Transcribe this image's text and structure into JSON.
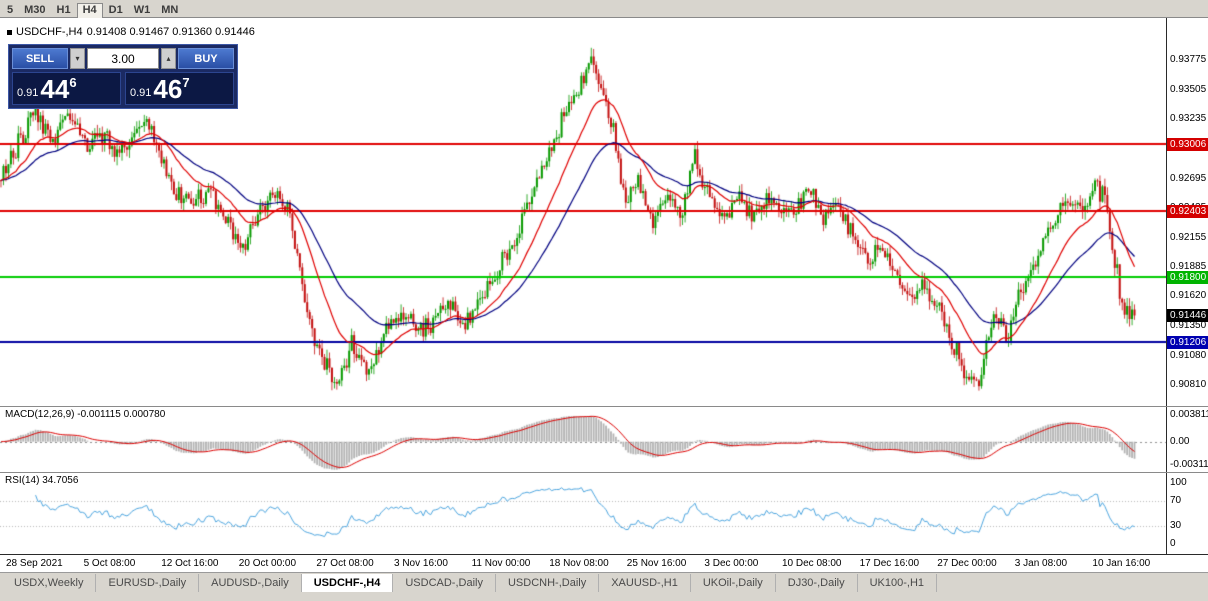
{
  "toolbar": {
    "timeframes": [
      "5",
      "M30",
      "H1",
      "H4",
      "D1",
      "W1",
      "MN"
    ],
    "active": "H4"
  },
  "symbol_header": {
    "name": "USDCHF-,H4",
    "ohlc": "0.91408 0.91467 0.91360 0.91446"
  },
  "trade_panel": {
    "sell_label": "SELL",
    "buy_label": "BUY",
    "lot_size": "3.00",
    "sell_price": {
      "prefix": "0.91",
      "big": "44",
      "sup": "6"
    },
    "buy_price": {
      "prefix": "0.91",
      "big": "46",
      "sup": "7"
    }
  },
  "price_axis": {
    "labels": [
      "0.93775",
      "0.93505",
      "0.93235",
      "0.92965",
      "0.92695",
      "0.92425",
      "0.92155",
      "0.91885",
      "0.91620",
      "0.91350",
      "0.91080",
      "0.90810"
    ],
    "tags": [
      {
        "text": "0.93006",
        "bg": "#d40000",
        "fg": "#ffffff"
      },
      {
        "text": "0.92403",
        "bg": "#d40000",
        "fg": "#ffffff"
      },
      {
        "text": "0.91800",
        "bg": "#00b400",
        "fg": "#ffffff"
      },
      {
        "text": "0.91446",
        "bg": "#000000",
        "fg": "#ffffff"
      },
      {
        "text": "0.91206",
        "bg": "#0000b0",
        "fg": "#ffffff"
      }
    ]
  },
  "tabs": {
    "items": [
      "USDX,Weekly",
      "EURUSD-,Daily",
      "AUDUSD-,Daily",
      "USDCHF-,H4",
      "USDCAD-,Daily",
      "USDCNH-,Daily",
      "XAUUSD-,H1",
      "UKOil-,Daily",
      "DJ30-,Daily",
      "UK100-,H1"
    ],
    "active": "USDCHF-,H4"
  },
  "chart_data": {
    "type": "candlestick",
    "symbol": "USDCHF-",
    "timeframe": "H4",
    "open": "0.91408",
    "high": "0.91467",
    "low": "0.91360",
    "close": "0.91446",
    "last_close": 0.91446,
    "y_range": [
      0.9062,
      0.9416
    ],
    "candle_count": 460,
    "up_color": "#089a00",
    "down_color": "#c41111",
    "ma_fast": {
      "period": 20,
      "color": "#e00000"
    },
    "ma_slow": {
      "period": 44,
      "color": "#000080"
    },
    "hlines": [
      {
        "value": 0.93006,
        "color": "#e00000",
        "width": 2
      },
      {
        "value": 0.92403,
        "color": "#e00000",
        "width": 2
      },
      {
        "value": 0.918,
        "color": "#00cc00",
        "width": 2
      },
      {
        "value": 0.91206,
        "color": "#0000a0",
        "width": 2
      }
    ],
    "anchors": [
      [
        0.0,
        0.9268
      ],
      [
        0.012,
        0.9295
      ],
      [
        0.03,
        0.9332
      ],
      [
        0.045,
        0.9305
      ],
      [
        0.06,
        0.9328
      ],
      [
        0.075,
        0.9296
      ],
      [
        0.09,
        0.9312
      ],
      [
        0.105,
        0.929
      ],
      [
        0.115,
        0.9302
      ],
      [
        0.128,
        0.9325
      ],
      [
        0.142,
        0.9282
      ],
      [
        0.155,
        0.9255
      ],
      [
        0.17,
        0.9248
      ],
      [
        0.185,
        0.9262
      ],
      [
        0.2,
        0.923
      ],
      [
        0.215,
        0.9205
      ],
      [
        0.228,
        0.924
      ],
      [
        0.242,
        0.9258
      ],
      [
        0.255,
        0.9235
      ],
      [
        0.268,
        0.916
      ],
      [
        0.282,
        0.9105
      ],
      [
        0.295,
        0.9082
      ],
      [
        0.31,
        0.912
      ],
      [
        0.325,
        0.9092
      ],
      [
        0.34,
        0.913
      ],
      [
        0.355,
        0.915
      ],
      [
        0.368,
        0.9128
      ],
      [
        0.382,
        0.9142
      ],
      [
        0.395,
        0.916
      ],
      [
        0.408,
        0.9135
      ],
      [
        0.422,
        0.9158
      ],
      [
        0.435,
        0.918
      ],
      [
        0.45,
        0.9208
      ],
      [
        0.465,
        0.9248
      ],
      [
        0.48,
        0.9285
      ],
      [
        0.495,
        0.9322
      ],
      [
        0.508,
        0.9352
      ],
      [
        0.52,
        0.9375
      ],
      [
        0.532,
        0.9345
      ],
      [
        0.542,
        0.9302
      ],
      [
        0.552,
        0.9245
      ],
      [
        0.562,
        0.9272
      ],
      [
        0.575,
        0.9228
      ],
      [
        0.588,
        0.9258
      ],
      [
        0.6,
        0.9232
      ],
      [
        0.612,
        0.9288
      ],
      [
        0.625,
        0.9252
      ],
      [
        0.638,
        0.923
      ],
      [
        0.65,
        0.9255
      ],
      [
        0.662,
        0.9238
      ],
      [
        0.675,
        0.9252
      ],
      [
        0.688,
        0.9242
      ],
      [
        0.7,
        0.924
      ],
      [
        0.712,
        0.9262
      ],
      [
        0.725,
        0.9235
      ],
      [
        0.738,
        0.9248
      ],
      [
        0.752,
        0.9215
      ],
      [
        0.765,
        0.9195
      ],
      [
        0.778,
        0.9205
      ],
      [
        0.79,
        0.918
      ],
      [
        0.802,
        0.9165
      ],
      [
        0.815,
        0.9172
      ],
      [
        0.828,
        0.915
      ],
      [
        0.84,
        0.9118
      ],
      [
        0.852,
        0.9092
      ],
      [
        0.862,
        0.9085
      ],
      [
        0.875,
        0.914
      ],
      [
        0.888,
        0.9128
      ],
      [
        0.9,
        0.9165
      ],
      [
        0.912,
        0.919
      ],
      [
        0.925,
        0.9225
      ],
      [
        0.94,
        0.9252
      ],
      [
        0.955,
        0.924
      ],
      [
        0.965,
        0.9268
      ],
      [
        0.975,
        0.9248
      ],
      [
        0.988,
        0.916
      ],
      [
        1.0,
        0.91446
      ]
    ],
    "macd": {
      "label": "MACD(12,26,9) -0.001115 0.000780",
      "fast": 12,
      "slow": 26,
      "signal": 9,
      "axis": [
        "0.003811",
        "0.00",
        "-0.003115"
      ],
      "hist_color": "#b4b4b4",
      "signal_color": "#dd0000"
    },
    "rsi": {
      "label": "RSI(14) 34.7056",
      "period": 14,
      "value": 34.7056,
      "levels": [
        70,
        30
      ],
      "axis": [
        "100",
        "70",
        "30",
        "0"
      ],
      "color": "#4da6e0"
    },
    "time_labels": [
      "28 Sep 2021",
      "5 Oct 08:00",
      "12 Oct 16:00",
      "20 Oct 00:00",
      "27 Oct 08:00",
      "3 Nov 16:00",
      "11 Nov 00:00",
      "18 Nov 08:00",
      "25 Nov 16:00",
      "3 Dec 00:00",
      "10 Dec 08:00",
      "17 Dec 16:00",
      "27 Dec 00:00",
      "3 Jan 08:00",
      "10 Jan 16:00"
    ]
  }
}
